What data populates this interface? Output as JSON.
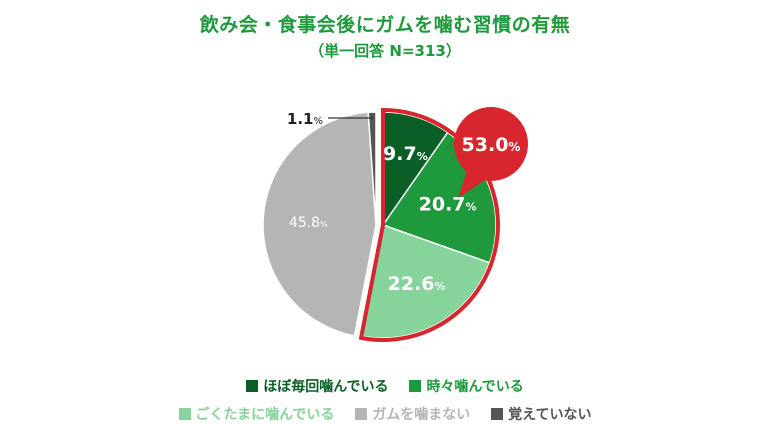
{
  "title": "飲み会・食事会後にガムを噛む習慣の有無",
  "subtitle": "（単一回答 N=313）",
  "chart_data": {
    "type": "pie",
    "title": "飲み会・食事会後にガムを噛む習慣の有無",
    "subtitle": "（単一回答 N=313）",
    "unit": "%",
    "slices": [
      {
        "label": "ほぼ毎回噛んでいる",
        "value": 9.7,
        "value_text": "9.7",
        "color": "#0b5e26"
      },
      {
        "label": "時々噛んでいる",
        "value": 20.7,
        "value_text": "20.7",
        "color": "#1e9a3c"
      },
      {
        "label": "ごくたまに噛んでいる",
        "value": 22.6,
        "value_text": "22.6",
        "color": "#86d39b"
      },
      {
        "label": "ガムを噛まない",
        "value": 45.8,
        "value_text": "45.8",
        "color": "#b5b5b5"
      },
      {
        "label": "覚えていない",
        "value": 1.1,
        "value_text": "1.1",
        "color": "#555555"
      }
    ],
    "highlight": {
      "value_text": "53.0",
      "color": "#d8262e"
    }
  }
}
